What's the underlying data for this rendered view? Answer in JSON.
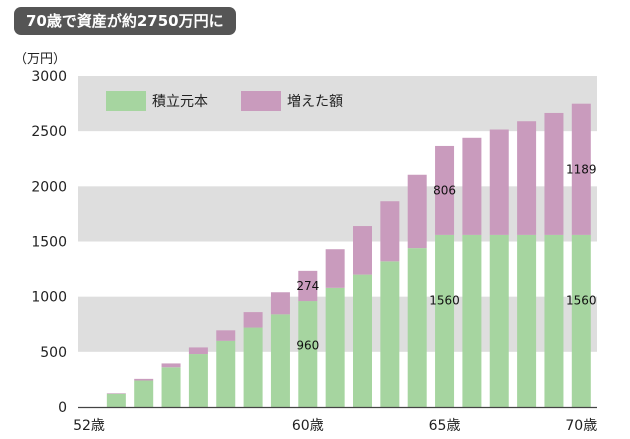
{
  "title": "70歳で資産が約2750万円に",
  "unit": "（万円）",
  "colors": {
    "base": "#a6d5a0",
    "growth": "#c99bbd",
    "band": "#dedede",
    "badge": "#555555"
  },
  "chart_data": {
    "type": "bar",
    "stacked": true,
    "categories": [
      "52歳",
      "53歳",
      "54歳",
      "55歳",
      "56歳",
      "57歳",
      "58歳",
      "59歳",
      "60歳",
      "61歳",
      "62歳",
      "63歳",
      "64歳",
      "65歳",
      "66歳",
      "67歳",
      "68歳",
      "69歳",
      "70歳"
    ],
    "xtick_labels": [
      "52歳",
      "",
      "",
      "",
      "",
      "",
      "",
      "",
      "60歳",
      "",
      "",
      "",
      "",
      "65歳",
      "",
      "",
      "",
      "",
      "70歳"
    ],
    "series": [
      {
        "name": "積立元本",
        "color": "#a6d5a0",
        "values": [
          0,
          120,
          240,
          360,
          480,
          600,
          720,
          840,
          960,
          1080,
          1200,
          1320,
          1440,
          1560,
          1560,
          1560,
          1560,
          1560,
          1560
        ]
      },
      {
        "name": "増えた額",
        "color": "#c99bbd",
        "values": [
          0,
          5,
          15,
          35,
          60,
          95,
          140,
          200,
          274,
          350,
          440,
          545,
          665,
          806,
          880,
          955,
          1030,
          1105,
          1189
        ]
      }
    ],
    "annotations": [
      {
        "category": "60歳",
        "series": "積立元本",
        "text": "960"
      },
      {
        "category": "60歳",
        "series": "増えた額",
        "text": "274"
      },
      {
        "category": "65歳",
        "series": "積立元本",
        "text": "1560"
      },
      {
        "category": "65歳",
        "series": "増えた額",
        "text": "806"
      },
      {
        "category": "70歳",
        "series": "積立元本",
        "text": "1560"
      },
      {
        "category": "70歳",
        "series": "増えた額",
        "text": "1189"
      }
    ],
    "yticks": [
      "0",
      "500",
      "1000",
      "1500",
      "2000",
      "2500",
      "3000"
    ],
    "ylim": [
      0,
      3000
    ],
    "legend_position": "top-left",
    "grid": "alternating horizontal bands"
  }
}
